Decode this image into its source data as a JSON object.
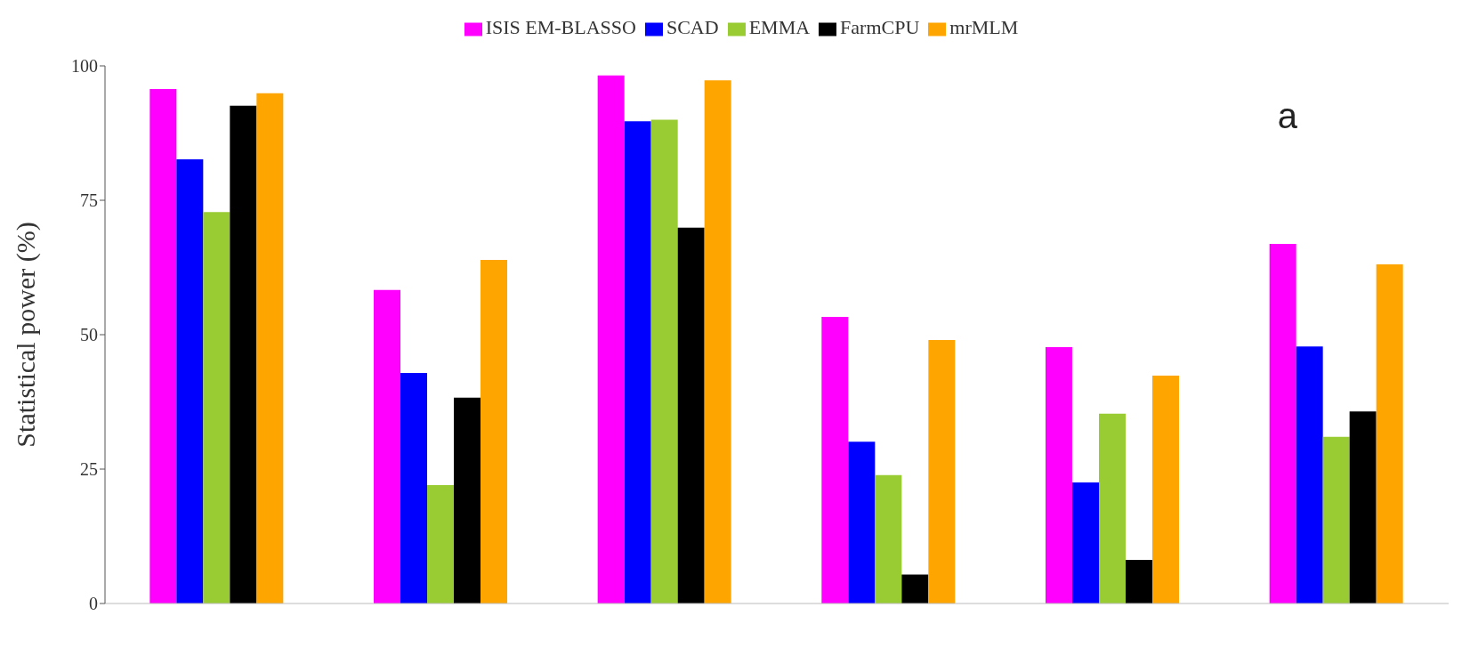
{
  "chart_data": {
    "type": "bar",
    "ylabel": "Statistical power (%)",
    "annotations": [
      "a"
    ],
    "categories": [
      null,
      null,
      null,
      null,
      null,
      null
    ],
    "series": [
      {
        "name": "ISIS EM-BLASSO",
        "color": "#ff00ff",
        "values": [
          95.7,
          58.3,
          98.2,
          53.3,
          47.7,
          66.9
        ]
      },
      {
        "name": "SCAD",
        "color": "#0000ff",
        "values": [
          82.6,
          42.9,
          89.7,
          30.1,
          22.5,
          47.8
        ]
      },
      {
        "name": "EMMA",
        "color": "#99cc33",
        "values": [
          72.8,
          22.0,
          90.0,
          23.9,
          35.3,
          31.0
        ]
      },
      {
        "name": "FarmCPU",
        "color": "#000000",
        "values": [
          92.6,
          38.3,
          69.9,
          5.4,
          8.1,
          35.7
        ]
      },
      {
        "name": "mrMLM",
        "color": "#ffa500",
        "values": [
          94.9,
          63.9,
          97.3,
          49.0,
          42.4,
          63.1
        ]
      }
    ],
    "ylim": [
      0,
      100
    ],
    "yticks": [
      0,
      25,
      50,
      75,
      100
    ],
    "grid": false,
    "legend": "top",
    "tick_labels": "y"
  }
}
